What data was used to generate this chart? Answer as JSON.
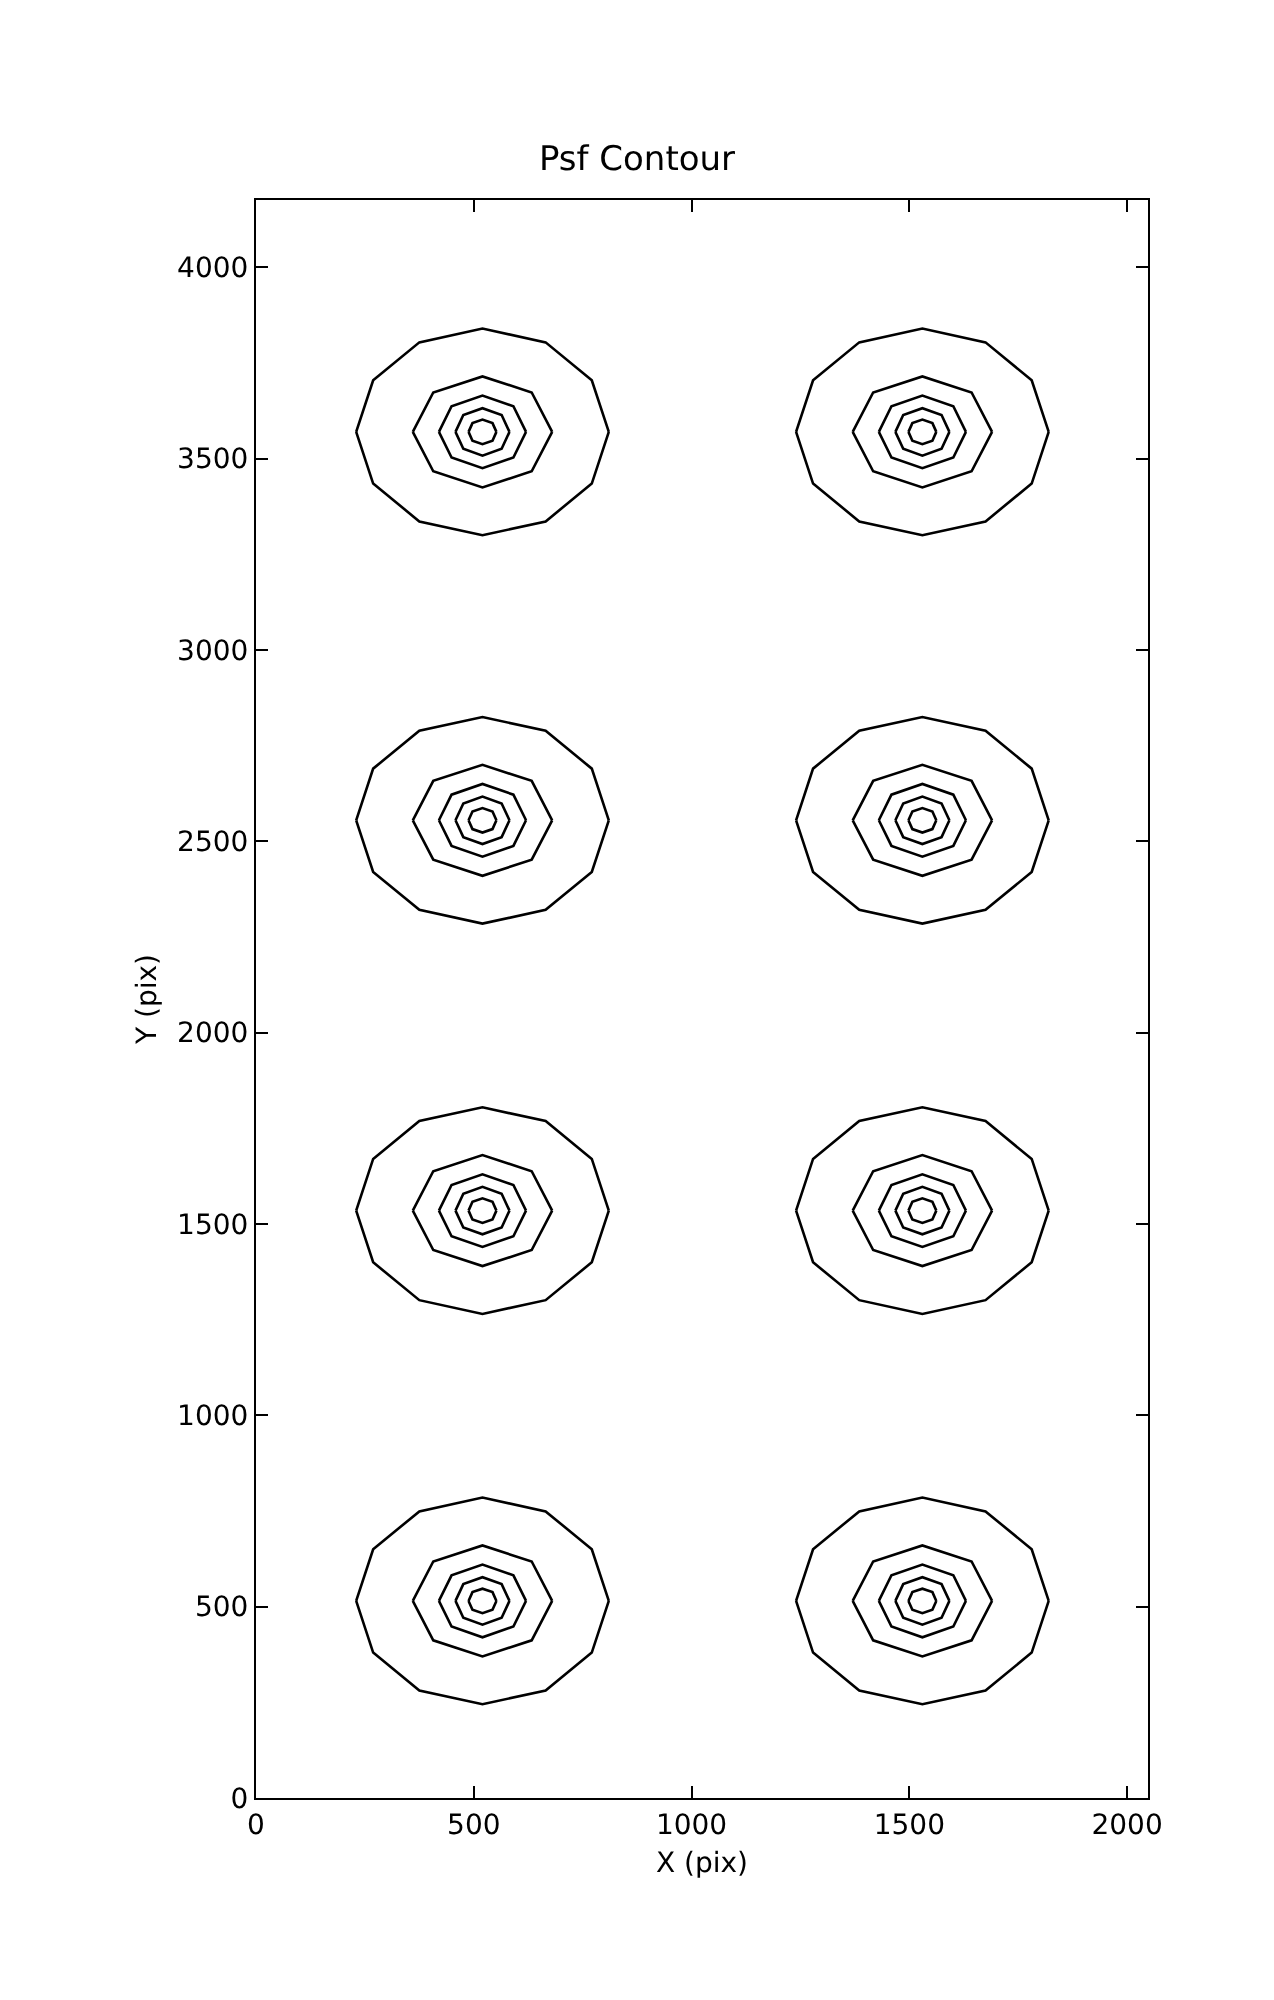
{
  "chart_data": {
    "type": "line",
    "title": "Psf Contour",
    "xlabel": "X (pix)",
    "ylabel": "Y (pix)",
    "xlim": [
      0,
      2048
    ],
    "ylim": [
      0,
      4176
    ],
    "xticks": [
      0,
      500,
      1000,
      1500,
      2000
    ],
    "yticks": [
      0,
      500,
      1000,
      1500,
      2000,
      2500,
      3000,
      3500,
      4000
    ],
    "grid": false,
    "marker": "none",
    "line_style": "solid",
    "series": [
      {
        "color": "#000000",
        "x": [
          230,
          269,
          375,
          520,
          665,
          771,
          810
        ],
        "values": [
          3570,
          3705,
          3804,
          3840,
          3804,
          3705,
          3570
        ]
      },
      {
        "color": "#000000",
        "x": [
          230,
          269,
          375,
          520,
          665,
          771,
          810
        ],
        "values": [
          3570,
          3435,
          3336,
          3300,
          3336,
          3435,
          3570
        ]
      },
      {
        "color": "#000000",
        "x": [
          360,
          407,
          520,
          633,
          680
        ],
        "values": [
          3570,
          3673,
          3715,
          3673,
          3570
        ]
      },
      {
        "color": "#000000",
        "x": [
          360,
          407,
          520,
          633,
          680
        ],
        "values": [
          3570,
          3467,
          3425,
          3467,
          3570
        ]
      },
      {
        "color": "#000000",
        "x": [
          420,
          449,
          520,
          591,
          620
        ],
        "values": [
          3570,
          3637,
          3665,
          3637,
          3570
        ]
      },
      {
        "color": "#000000",
        "x": [
          420,
          449,
          520,
          591,
          620
        ],
        "values": [
          3570,
          3503,
          3475,
          3503,
          3570
        ]
      },
      {
        "color": "#000000",
        "x": [
          458,
          476,
          520,
          564,
          582
        ],
        "values": [
          3570,
          3614,
          3632,
          3614,
          3570
        ]
      },
      {
        "color": "#000000",
        "x": [
          458,
          476,
          520,
          564,
          582
        ],
        "values": [
          3570,
          3526,
          3508,
          3526,
          3570
        ]
      },
      {
        "color": "#000000",
        "x": [
          488,
          497,
          520,
          543,
          552
        ],
        "values": [
          3570,
          3593,
          3602,
          3593,
          3570
        ]
      },
      {
        "color": "#000000",
        "x": [
          488,
          497,
          520,
          543,
          552
        ],
        "values": [
          3570,
          3547,
          3538,
          3547,
          3570
        ]
      },
      {
        "color": "#000000",
        "x": [
          1240,
          1279,
          1385,
          1530,
          1675,
          1781,
          1820
        ],
        "values": [
          3570,
          3705,
          3804,
          3840,
          3804,
          3705,
          3570
        ]
      },
      {
        "color": "#000000",
        "x": [
          1240,
          1279,
          1385,
          1530,
          1675,
          1781,
          1820
        ],
        "values": [
          3570,
          3435,
          3336,
          3300,
          3336,
          3435,
          3570
        ]
      },
      {
        "color": "#000000",
        "x": [
          1370,
          1417,
          1530,
          1643,
          1690
        ],
        "values": [
          3570,
          3673,
          3715,
          3673,
          3570
        ]
      },
      {
        "color": "#000000",
        "x": [
          1370,
          1417,
          1530,
          1643,
          1690
        ],
        "values": [
          3570,
          3467,
          3425,
          3467,
          3570
        ]
      },
      {
        "color": "#000000",
        "x": [
          1430,
          1459,
          1530,
          1601,
          1630
        ],
        "values": [
          3570,
          3637,
          3665,
          3637,
          3570
        ]
      },
      {
        "color": "#000000",
        "x": [
          1430,
          1459,
          1530,
          1601,
          1630
        ],
        "values": [
          3570,
          3503,
          3475,
          3503,
          3570
        ]
      },
      {
        "color": "#000000",
        "x": [
          1468,
          1486,
          1530,
          1574,
          1592
        ],
        "values": [
          3570,
          3614,
          3632,
          3614,
          3570
        ]
      },
      {
        "color": "#000000",
        "x": [
          1468,
          1486,
          1530,
          1574,
          1592
        ],
        "values": [
          3570,
          3526,
          3508,
          3526,
          3570
        ]
      },
      {
        "color": "#000000",
        "x": [
          1498,
          1507,
          1530,
          1553,
          1562
        ],
        "values": [
          3570,
          3593,
          3602,
          3593,
          3570
        ]
      },
      {
        "color": "#000000",
        "x": [
          1498,
          1507,
          1530,
          1553,
          1562
        ],
        "values": [
          3570,
          3547,
          3538,
          3547,
          3570
        ]
      },
      {
        "color": "#000000",
        "x": [
          230,
          269,
          375,
          520,
          665,
          771,
          810
        ],
        "values": [
          2555,
          2690,
          2789,
          2825,
          2789,
          2690,
          2555
        ]
      },
      {
        "color": "#000000",
        "x": [
          230,
          269,
          375,
          520,
          665,
          771,
          810
        ],
        "values": [
          2555,
          2420,
          2321,
          2285,
          2321,
          2420,
          2555
        ]
      },
      {
        "color": "#000000",
        "x": [
          360,
          407,
          520,
          633,
          680
        ],
        "values": [
          2555,
          2658,
          2700,
          2658,
          2555
        ]
      },
      {
        "color": "#000000",
        "x": [
          360,
          407,
          520,
          633,
          680
        ],
        "values": [
          2555,
          2452,
          2410,
          2452,
          2555
        ]
      },
      {
        "color": "#000000",
        "x": [
          420,
          449,
          520,
          591,
          620
        ],
        "values": [
          2555,
          2622,
          2650,
          2622,
          2555
        ]
      },
      {
        "color": "#000000",
        "x": [
          420,
          449,
          520,
          591,
          620
        ],
        "values": [
          2555,
          2488,
          2460,
          2488,
          2555
        ]
      },
      {
        "color": "#000000",
        "x": [
          458,
          476,
          520,
          564,
          582
        ],
        "values": [
          2555,
          2599,
          2617,
          2599,
          2555
        ]
      },
      {
        "color": "#000000",
        "x": [
          458,
          476,
          520,
          564,
          582
        ],
        "values": [
          2555,
          2511,
          2493,
          2511,
          2555
        ]
      },
      {
        "color": "#000000",
        "x": [
          488,
          497,
          520,
          543,
          552
        ],
        "values": [
          2555,
          2578,
          2587,
          2578,
          2555
        ]
      },
      {
        "color": "#000000",
        "x": [
          488,
          497,
          520,
          543,
          552
        ],
        "values": [
          2555,
          2532,
          2523,
          2532,
          2555
        ]
      },
      {
        "color": "#000000",
        "x": [
          1240,
          1279,
          1385,
          1530,
          1675,
          1781,
          1820
        ],
        "values": [
          2555,
          2690,
          2789,
          2825,
          2789,
          2690,
          2555
        ]
      },
      {
        "color": "#000000",
        "x": [
          1240,
          1279,
          1385,
          1530,
          1675,
          1781,
          1820
        ],
        "values": [
          2555,
          2420,
          2321,
          2285,
          2321,
          2420,
          2555
        ]
      },
      {
        "color": "#000000",
        "x": [
          1370,
          1417,
          1530,
          1643,
          1690
        ],
        "values": [
          2555,
          2658,
          2700,
          2658,
          2555
        ]
      },
      {
        "color": "#000000",
        "x": [
          1370,
          1417,
          1530,
          1643,
          1690
        ],
        "values": [
          2555,
          2452,
          2410,
          2452,
          2555
        ]
      },
      {
        "color": "#000000",
        "x": [
          1430,
          1459,
          1530,
          1601,
          1630
        ],
        "values": [
          2555,
          2622,
          2650,
          2622,
          2555
        ]
      },
      {
        "color": "#000000",
        "x": [
          1430,
          1459,
          1530,
          1601,
          1630
        ],
        "values": [
          2555,
          2488,
          2460,
          2488,
          2555
        ]
      },
      {
        "color": "#000000",
        "x": [
          1468,
          1486,
          1530,
          1574,
          1592
        ],
        "values": [
          2555,
          2599,
          2617,
          2599,
          2555
        ]
      },
      {
        "color": "#000000",
        "x": [
          1468,
          1486,
          1530,
          1574,
          1592
        ],
        "values": [
          2555,
          2511,
          2493,
          2511,
          2555
        ]
      },
      {
        "color": "#000000",
        "x": [
          1498,
          1507,
          1530,
          1553,
          1562
        ],
        "values": [
          2555,
          2578,
          2587,
          2578,
          2555
        ]
      },
      {
        "color": "#000000",
        "x": [
          1498,
          1507,
          1530,
          1553,
          1562
        ],
        "values": [
          2555,
          2532,
          2523,
          2532,
          2555
        ]
      },
      {
        "color": "#000000",
        "x": [
          230,
          269,
          375,
          520,
          665,
          771,
          810
        ],
        "values": [
          1535,
          1670,
          1769,
          1805,
          1769,
          1670,
          1535
        ]
      },
      {
        "color": "#000000",
        "x": [
          230,
          269,
          375,
          520,
          665,
          771,
          810
        ],
        "values": [
          1535,
          1400,
          1301,
          1265,
          1301,
          1400,
          1535
        ]
      },
      {
        "color": "#000000",
        "x": [
          360,
          407,
          520,
          633,
          680
        ],
        "values": [
          1535,
          1638,
          1680,
          1638,
          1535
        ]
      },
      {
        "color": "#000000",
        "x": [
          360,
          407,
          520,
          633,
          680
        ],
        "values": [
          1535,
          1432,
          1390,
          1432,
          1535
        ]
      },
      {
        "color": "#000000",
        "x": [
          420,
          449,
          520,
          591,
          620
        ],
        "values": [
          1535,
          1602,
          1630,
          1602,
          1535
        ]
      },
      {
        "color": "#000000",
        "x": [
          420,
          449,
          520,
          591,
          620
        ],
        "values": [
          1535,
          1468,
          1440,
          1468,
          1535
        ]
      },
      {
        "color": "#000000",
        "x": [
          458,
          476,
          520,
          564,
          582
        ],
        "values": [
          1535,
          1579,
          1597,
          1579,
          1535
        ]
      },
      {
        "color": "#000000",
        "x": [
          458,
          476,
          520,
          564,
          582
        ],
        "values": [
          1535,
          1491,
          1473,
          1491,
          1535
        ]
      },
      {
        "color": "#000000",
        "x": [
          488,
          497,
          520,
          543,
          552
        ],
        "values": [
          1535,
          1558,
          1567,
          1558,
          1535
        ]
      },
      {
        "color": "#000000",
        "x": [
          488,
          497,
          520,
          543,
          552
        ],
        "values": [
          1535,
          1512,
          1503,
          1512,
          1535
        ]
      },
      {
        "color": "#000000",
        "x": [
          1240,
          1279,
          1385,
          1530,
          1675,
          1781,
          1820
        ],
        "values": [
          1535,
          1670,
          1769,
          1805,
          1769,
          1670,
          1535
        ]
      },
      {
        "color": "#000000",
        "x": [
          1240,
          1279,
          1385,
          1530,
          1675,
          1781,
          1820
        ],
        "values": [
          1535,
          1400,
          1301,
          1265,
          1301,
          1400,
          1535
        ]
      },
      {
        "color": "#000000",
        "x": [
          1370,
          1417,
          1530,
          1643,
          1690
        ],
        "values": [
          1535,
          1638,
          1680,
          1638,
          1535
        ]
      },
      {
        "color": "#000000",
        "x": [
          1370,
          1417,
          1530,
          1643,
          1690
        ],
        "values": [
          1535,
          1432,
          1390,
          1432,
          1535
        ]
      },
      {
        "color": "#000000",
        "x": [
          1430,
          1459,
          1530,
          1601,
          1630
        ],
        "values": [
          1535,
          1602,
          1630,
          1602,
          1535
        ]
      },
      {
        "color": "#000000",
        "x": [
          1430,
          1459,
          1530,
          1601,
          1630
        ],
        "values": [
          1535,
          1468,
          1440,
          1468,
          1535
        ]
      },
      {
        "color": "#000000",
        "x": [
          1468,
          1486,
          1530,
          1574,
          1592
        ],
        "values": [
          1535,
          1579,
          1597,
          1579,
          1535
        ]
      },
      {
        "color": "#000000",
        "x": [
          1468,
          1486,
          1530,
          1574,
          1592
        ],
        "values": [
          1535,
          1491,
          1473,
          1491,
          1535
        ]
      },
      {
        "color": "#000000",
        "x": [
          1498,
          1507,
          1530,
          1553,
          1562
        ],
        "values": [
          1535,
          1558,
          1567,
          1558,
          1535
        ]
      },
      {
        "color": "#000000",
        "x": [
          1498,
          1507,
          1530,
          1553,
          1562
        ],
        "values": [
          1535,
          1512,
          1503,
          1512,
          1535
        ]
      },
      {
        "color": "#000000",
        "x": [
          230,
          269,
          375,
          520,
          665,
          771,
          810
        ],
        "values": [
          515,
          650,
          749,
          785,
          749,
          650,
          515
        ]
      },
      {
        "color": "#000000",
        "x": [
          230,
          269,
          375,
          520,
          665,
          771,
          810
        ],
        "values": [
          515,
          380,
          281,
          245,
          281,
          380,
          515
        ]
      },
      {
        "color": "#000000",
        "x": [
          360,
          407,
          520,
          633,
          680
        ],
        "values": [
          515,
          618,
          660,
          618,
          515
        ]
      },
      {
        "color": "#000000",
        "x": [
          360,
          407,
          520,
          633,
          680
        ],
        "values": [
          515,
          412,
          370,
          412,
          515
        ]
      },
      {
        "color": "#000000",
        "x": [
          420,
          449,
          520,
          591,
          620
        ],
        "values": [
          515,
          582,
          610,
          582,
          515
        ]
      },
      {
        "color": "#000000",
        "x": [
          420,
          449,
          520,
          591,
          620
        ],
        "values": [
          515,
          448,
          420,
          448,
          515
        ]
      },
      {
        "color": "#000000",
        "x": [
          458,
          476,
          520,
          564,
          582
        ],
        "values": [
          515,
          559,
          577,
          559,
          515
        ]
      },
      {
        "color": "#000000",
        "x": [
          458,
          476,
          520,
          564,
          582
        ],
        "values": [
          515,
          471,
          453,
          471,
          515
        ]
      },
      {
        "color": "#000000",
        "x": [
          488,
          497,
          520,
          543,
          552
        ],
        "values": [
          515,
          538,
          547,
          538,
          515
        ]
      },
      {
        "color": "#000000",
        "x": [
          488,
          497,
          520,
          543,
          552
        ],
        "values": [
          515,
          492,
          483,
          492,
          515
        ]
      },
      {
        "color": "#000000",
        "x": [
          1240,
          1279,
          1385,
          1530,
          1675,
          1781,
          1820
        ],
        "values": [
          515,
          650,
          749,
          785,
          749,
          650,
          515
        ]
      },
      {
        "color": "#000000",
        "x": [
          1240,
          1279,
          1385,
          1530,
          1675,
          1781,
          1820
        ],
        "values": [
          515,
          380,
          281,
          245,
          281,
          380,
          515
        ]
      },
      {
        "color": "#000000",
        "x": [
          1370,
          1417,
          1530,
          1643,
          1690
        ],
        "values": [
          515,
          618,
          660,
          618,
          515
        ]
      },
      {
        "color": "#000000",
        "x": [
          1370,
          1417,
          1530,
          1643,
          1690
        ],
        "values": [
          515,
          412,
          370,
          412,
          515
        ]
      },
      {
        "color": "#000000",
        "x": [
          1430,
          1459,
          1530,
          1601,
          1630
        ],
        "values": [
          515,
          582,
          610,
          582,
          515
        ]
      },
      {
        "color": "#000000",
        "x": [
          1430,
          1459,
          1530,
          1601,
          1630
        ],
        "values": [
          515,
          448,
          420,
          448,
          515
        ]
      },
      {
        "color": "#000000",
        "x": [
          1468,
          1486,
          1530,
          1574,
          1592
        ],
        "values": [
          515,
          559,
          577,
          559,
          515
        ]
      },
      {
        "color": "#000000",
        "x": [
          1468,
          1486,
          1530,
          1574,
          1592
        ],
        "values": [
          515,
          471,
          453,
          471,
          515
        ]
      },
      {
        "color": "#000000",
        "x": [
          1498,
          1507,
          1530,
          1553,
          1562
        ],
        "values": [
          515,
          538,
          547,
          538,
          515
        ]
      },
      {
        "color": "#000000",
        "x": [
          1498,
          1507,
          1530,
          1553,
          1562
        ],
        "values": [
          515,
          492,
          483,
          492,
          515
        ]
      }
    ]
  }
}
